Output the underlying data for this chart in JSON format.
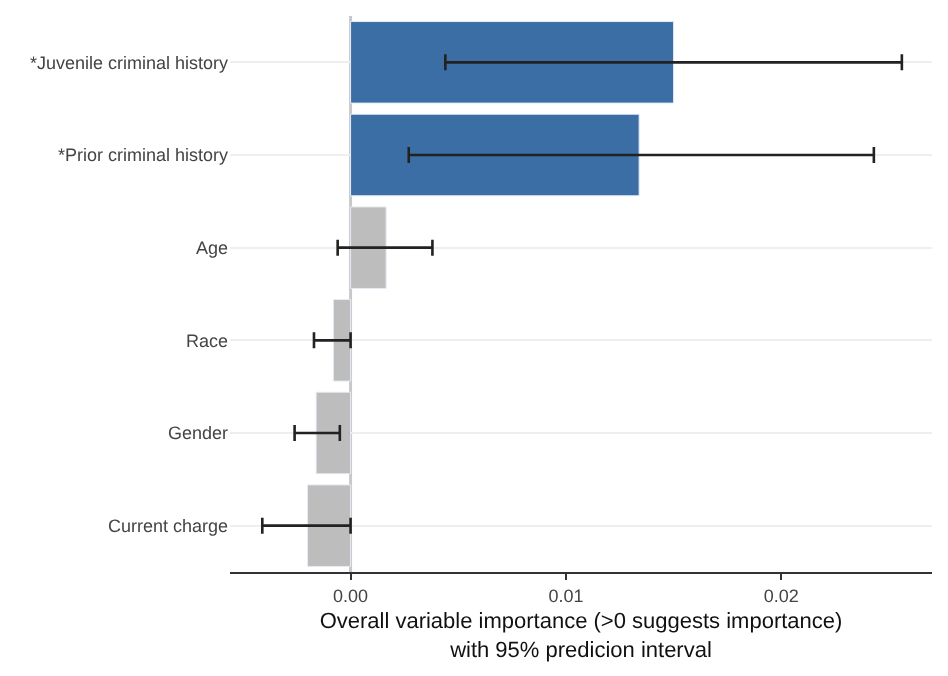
{
  "chart_data": {
    "type": "bar",
    "orientation": "horizontal",
    "categories": [
      "*Juvenile criminal history",
      "*Prior criminal history",
      "Age",
      "Race",
      "Gender",
      "Current charge"
    ],
    "values": [
      0.015,
      0.0134,
      0.00165,
      -0.0008,
      -0.0016,
      -0.002
    ],
    "colors": [
      "#3a6ea5",
      "#3a6ea5",
      "#bdbdbd",
      "#bdbdbd",
      "#bdbdbd",
      "#bdbdbd"
    ],
    "errors": [
      [
        0.0044,
        0.0256
      ],
      [
        0.0027,
        0.0243
      ],
      [
        -0.0006,
        0.0038
      ],
      [
        -0.0017,
        0.0
      ],
      [
        -0.0026,
        -0.0005
      ],
      [
        -0.0041,
        0.0
      ]
    ],
    "xlim": [
      -0.0056,
      0.027
    ],
    "xticks": [
      {
        "value": 0,
        "label": "0.00"
      },
      {
        "value": 0.01,
        "label": "0.01"
      },
      {
        "value": 0.02,
        "label": "0.02"
      }
    ],
    "xlabel": "Overall variable importance (>0 suggests importance)\nwith 95% predicion interval",
    "ref_lines": [
      {
        "axis": "x",
        "value": 0,
        "color": "#c8c8c8"
      }
    ],
    "grid": "y"
  }
}
